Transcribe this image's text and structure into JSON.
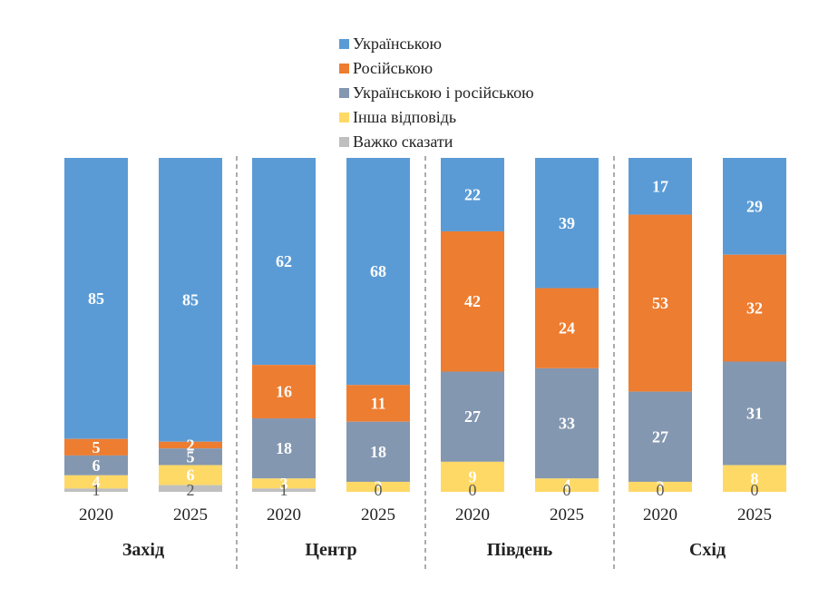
{
  "chart_data": {
    "type": "bar",
    "stacked": true,
    "legend_position": "top",
    "series": [
      {
        "name": "Українською",
        "color": "#5B9BD5"
      },
      {
        "name": "Російською",
        "color": "#ED7D31"
      },
      {
        "name": "Українською і російською",
        "color": "#8497B0"
      },
      {
        "name": "Інша відповідь",
        "color": "#FFD966"
      },
      {
        "name": "Важко сказати",
        "color": "#BFBFBF"
      }
    ],
    "groups": [
      {
        "region": "Захід",
        "bars": [
          {
            "year": "2020",
            "values": [
              85,
              5,
              6,
              4,
              1
            ]
          },
          {
            "year": "2025",
            "values": [
              85,
              2,
              5,
              6,
              2
            ]
          }
        ]
      },
      {
        "region": "Центр",
        "bars": [
          {
            "year": "2020",
            "values": [
              62,
              16,
              18,
              3,
              1
            ]
          },
          {
            "year": "2025",
            "values": [
              68,
              11,
              18,
              3,
              0
            ]
          }
        ]
      },
      {
        "region": "Південь",
        "bars": [
          {
            "year": "2020",
            "values": [
              22,
              42,
              27,
              9,
              0
            ]
          },
          {
            "year": "2025",
            "values": [
              39,
              24,
              33,
              4,
              0
            ]
          }
        ]
      },
      {
        "region": "Схід",
        "bars": [
          {
            "year": "2020",
            "values": [
              17,
              53,
              27,
              3,
              0
            ]
          },
          {
            "year": "2025",
            "values": [
              29,
              32,
              31,
              8,
              0
            ]
          }
        ]
      }
    ]
  }
}
